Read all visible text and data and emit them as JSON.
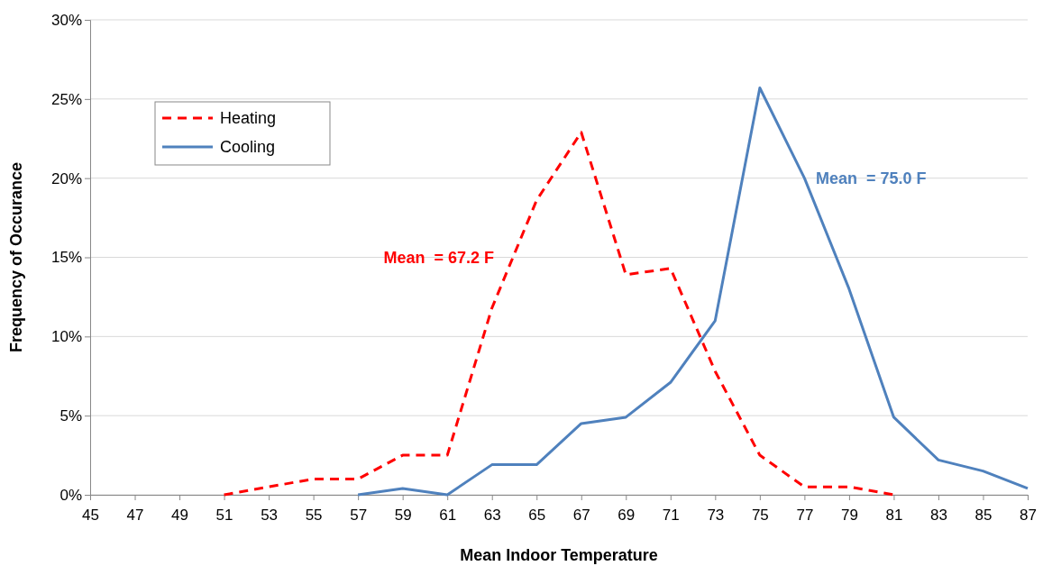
{
  "chart_data": {
    "type": "line",
    "xlabel": "Mean Indoor Temperature",
    "ylabel": "Frequency of Occurance",
    "xlim": [
      45,
      87
    ],
    "xticks": [
      45,
      47,
      49,
      51,
      53,
      55,
      57,
      59,
      61,
      63,
      65,
      67,
      69,
      71,
      73,
      75,
      77,
      79,
      81,
      83,
      85,
      87
    ],
    "ylim": [
      0,
      30
    ],
    "yticks": [
      {
        "value": 0,
        "label": "0%"
      },
      {
        "value": 5,
        "label": "5%"
      },
      {
        "value": 10,
        "label": "10%"
      },
      {
        "value": 15,
        "label": "15%"
      },
      {
        "value": 20,
        "label": "20%"
      },
      {
        "value": 25,
        "label": "25%"
      },
      {
        "value": 30,
        "label": "30%"
      }
    ],
    "grid": "y",
    "legend": "top left",
    "series": [
      {
        "name": "Heating",
        "color": "#ff0000",
        "line_style": "dashed",
        "x": [
          51,
          53,
          55,
          57,
          59,
          61,
          63,
          65,
          67,
          69,
          71,
          73,
          75,
          77,
          79,
          81
        ],
        "values": [
          0,
          0.5,
          1,
          1,
          2.5,
          2.5,
          11.8,
          18.6,
          22.9,
          13.9,
          14.3,
          7.8,
          2.5,
          0.5,
          0.5,
          0
        ]
      },
      {
        "name": "Cooling",
        "color": "#4f81bd",
        "line_style": "solid",
        "x": [
          57,
          59,
          61,
          63,
          65,
          67,
          69,
          71,
          73,
          75,
          77,
          79,
          81,
          83,
          85,
          87
        ],
        "values": [
          0,
          0.4,
          0,
          1.9,
          1.9,
          4.5,
          4.9,
          7.1,
          11,
          25.7,
          20,
          13,
          4.9,
          2.2,
          1.5,
          0.4
        ]
      }
    ],
    "annotations": [
      "Mean  = 67.2 F",
      "Mean  = 75.0 F"
    ]
  }
}
